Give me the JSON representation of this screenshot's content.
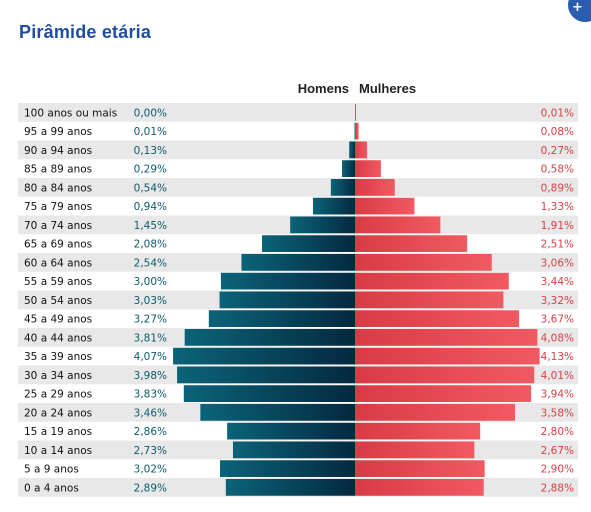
{
  "title": "Pirâmide etária",
  "colors": {
    "male_dark": "#04293f",
    "male_light": "#0b6379",
    "female_dark": "#d83b45",
    "female_light": "#f15a62",
    "male_text": "#0c5b6c",
    "female_text": "#d84048",
    "row_alt": "#e8e8e8",
    "title": "#1f4e9c"
  },
  "chart_data": {
    "type": "bar",
    "orientation": "horizontal-pyramid",
    "categories": [
      "100 anos ou mais",
      "95 a 99 anos",
      "90 a 94 anos",
      "85 a 89 anos",
      "80 a 84 anos",
      "75 a 79 anos",
      "70 a 74 anos",
      "65 a 69 anos",
      "60 a 64 anos",
      "55 a 59 anos",
      "50 a 54 anos",
      "45 a 49 anos",
      "40 a 44 anos",
      "35 a 39 anos",
      "30 a 34 anos",
      "25 a 29 anos",
      "20 a 24 anos",
      "15 a 19 anos",
      "10 a 14 anos",
      "5 a 9 anos",
      "0 a 4 anos"
    ],
    "series": [
      {
        "name": "Homens",
        "values": [
          0.0,
          0.01,
          0.13,
          0.29,
          0.54,
          0.94,
          1.45,
          2.08,
          2.54,
          3.0,
          3.03,
          3.27,
          3.81,
          4.07,
          3.98,
          3.83,
          3.46,
          2.86,
          2.73,
          3.02,
          2.89
        ],
        "labels": [
          "0,00%",
          "0,01%",
          "0,13%",
          "0,29%",
          "0,54%",
          "0,94%",
          "1,45%",
          "2,08%",
          "2,54%",
          "3,00%",
          "3,03%",
          "3,27%",
          "3,81%",
          "4,07%",
          "3,98%",
          "3,83%",
          "3,46%",
          "2,86%",
          "2,73%",
          "3,02%",
          "2,89%"
        ]
      },
      {
        "name": "Mulheres",
        "values": [
          0.01,
          0.08,
          0.27,
          0.58,
          0.89,
          1.33,
          1.91,
          2.51,
          3.06,
          3.44,
          3.32,
          3.67,
          4.08,
          4.13,
          4.01,
          3.94,
          3.58,
          2.8,
          2.67,
          2.9,
          2.88
        ],
        "labels": [
          "0,01%",
          "0,08%",
          "0,27%",
          "0,58%",
          "0,89%",
          "1,33%",
          "1,91%",
          "2,51%",
          "3,06%",
          "3,44%",
          "3,32%",
          "3,67%",
          "4,08%",
          "4,13%",
          "4,01%",
          "3,94%",
          "3,58%",
          "2,80%",
          "2,67%",
          "2,90%",
          "2,88%"
        ]
      }
    ],
    "legend": [
      "Homens",
      "Mulheres"
    ]
  }
}
